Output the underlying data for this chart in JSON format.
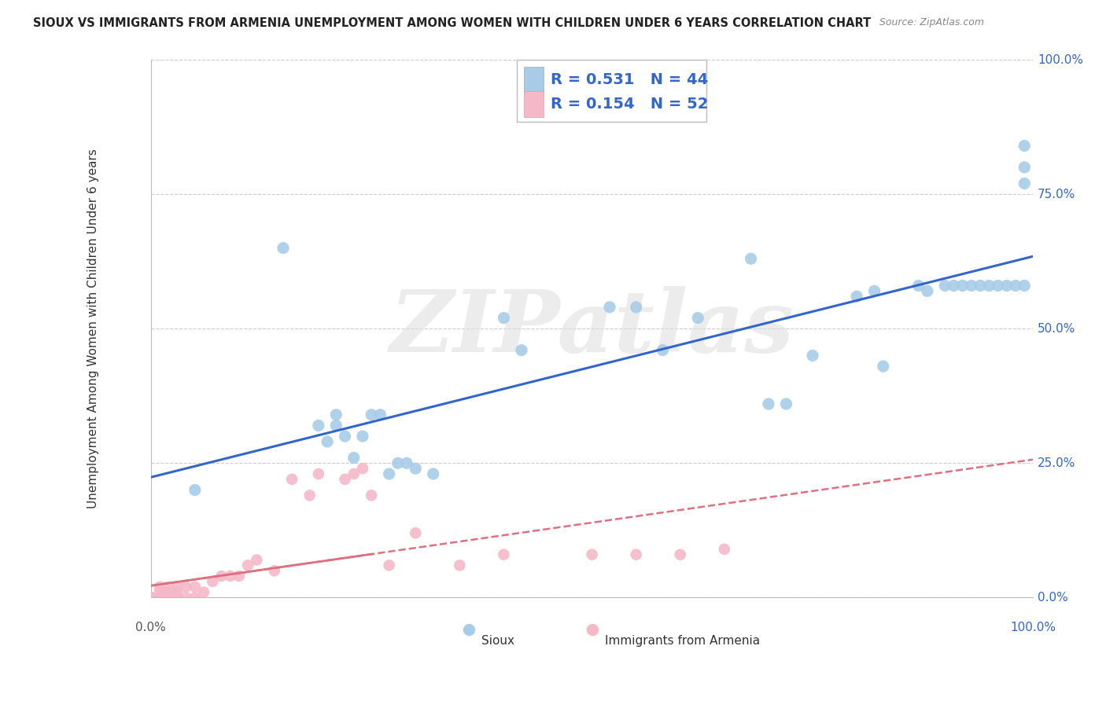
{
  "title": "SIOUX VS IMMIGRANTS FROM ARMENIA UNEMPLOYMENT AMONG WOMEN WITH CHILDREN UNDER 6 YEARS CORRELATION CHART",
  "source": "Source: ZipAtlas.com",
  "ylabel": "Unemployment Among Women with Children Under 6 years",
  "background_color": "#ffffff",
  "grid_color": "#cccccc",
  "watermark": "ZIPatlas",
  "sioux_R": 0.531,
  "sioux_N": 44,
  "armenia_R": 0.154,
  "armenia_N": 52,
  "sioux_color": "#a8cce8",
  "armenia_color": "#f4b8c8",
  "sioux_line_color": "#3366cc",
  "armenia_line_color": "#e07080",
  "yticks": [
    0.0,
    0.25,
    0.5,
    0.75,
    1.0
  ],
  "ytick_labels": [
    "0.0%",
    "25.0%",
    "50.0%",
    "75.0%",
    "100.0%"
  ],
  "xlim": [
    0.0,
    1.0
  ],
  "ylim": [
    0.0,
    1.0
  ],
  "sioux_x": [
    0.05,
    0.15,
    0.19,
    0.2,
    0.21,
    0.21,
    0.22,
    0.23,
    0.24,
    0.25,
    0.26,
    0.27,
    0.28,
    0.29,
    0.3,
    0.32,
    0.4,
    0.42,
    0.52,
    0.55,
    0.58,
    0.62,
    0.68,
    0.7,
    0.72,
    0.75,
    0.8,
    0.82,
    0.83,
    0.87,
    0.88,
    0.9,
    0.91,
    0.92,
    0.93,
    0.94,
    0.95,
    0.96,
    0.97,
    0.98,
    0.99,
    0.99,
    0.99,
    0.99
  ],
  "sioux_y": [
    0.2,
    0.65,
    0.32,
    0.29,
    0.34,
    0.32,
    0.3,
    0.26,
    0.3,
    0.34,
    0.34,
    0.23,
    0.25,
    0.25,
    0.24,
    0.23,
    0.52,
    0.46,
    0.54,
    0.54,
    0.46,
    0.52,
    0.63,
    0.36,
    0.36,
    0.45,
    0.56,
    0.57,
    0.43,
    0.58,
    0.57,
    0.58,
    0.58,
    0.58,
    0.58,
    0.58,
    0.58,
    0.58,
    0.58,
    0.58,
    0.58,
    0.77,
    0.8,
    0.84
  ],
  "armenia_x": [
    0.0,
    0.0,
    0.0,
    0.0,
    0.0,
    0.0,
    0.0,
    0.01,
    0.01,
    0.01,
    0.01,
    0.01,
    0.01,
    0.01,
    0.01,
    0.02,
    0.02,
    0.02,
    0.02,
    0.02,
    0.02,
    0.03,
    0.03,
    0.03,
    0.03,
    0.04,
    0.04,
    0.05,
    0.05,
    0.06,
    0.07,
    0.08,
    0.09,
    0.1,
    0.11,
    0.12,
    0.14,
    0.16,
    0.18,
    0.19,
    0.22,
    0.23,
    0.24,
    0.25,
    0.27,
    0.3,
    0.35,
    0.4,
    0.5,
    0.55,
    0.6,
    0.65
  ],
  "armenia_y": [
    0.0,
    0.0,
    0.0,
    0.0,
    0.0,
    0.0,
    0.0,
    0.0,
    0.0,
    0.0,
    0.0,
    0.0,
    0.01,
    0.02,
    0.0,
    0.0,
    0.0,
    0.01,
    0.02,
    0.0,
    0.0,
    0.0,
    0.0,
    0.01,
    0.02,
    0.0,
    0.02,
    0.02,
    0.0,
    0.01,
    0.03,
    0.04,
    0.04,
    0.04,
    0.06,
    0.07,
    0.05,
    0.22,
    0.19,
    0.23,
    0.22,
    0.23,
    0.24,
    0.19,
    0.06,
    0.12,
    0.06,
    0.08,
    0.08,
    0.08,
    0.08,
    0.09
  ]
}
